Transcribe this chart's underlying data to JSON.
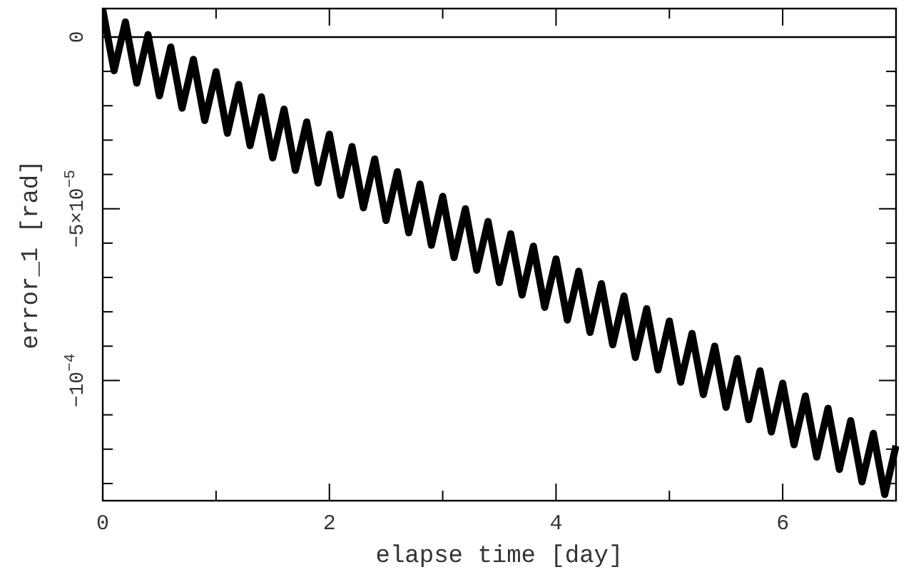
{
  "chart_data": {
    "type": "line",
    "xlabel": "elapse time [day]",
    "ylabel": "error_1 [rad]",
    "x": [
      0,
      0.1,
      0.2,
      0.3,
      0.4,
      0.5,
      0.6,
      0.7,
      0.8,
      0.9,
      1,
      1.1,
      1.2,
      1.3,
      1.4,
      1.5,
      1.6,
      1.7,
      1.8,
      1.9,
      2,
      2.1,
      2.2,
      2.3,
      2.4,
      2.5,
      2.6,
      2.7,
      2.8,
      2.9,
      3,
      3.1,
      3.2,
      3.3,
      3.4,
      3.5,
      3.6,
      3.7,
      3.8,
      3.9,
      4,
      4.1,
      4.2,
      4.3,
      4.4,
      4.5,
      4.6,
      4.7,
      4.8,
      4.9,
      5,
      5.1,
      5.2,
      5.3,
      5.4,
      5.5,
      5.6,
      5.7,
      5.8,
      5.9,
      6,
      6.1,
      6.2,
      6.3,
      6.4,
      6.5,
      6.6,
      6.7,
      6.8,
      6.9,
      7
    ],
    "series": [
      {
        "color": "#000000",
        "values": [
          8e-06,
          -9.8e-06,
          4.4e-06,
          -1.34e-05,
          7e-07,
          -1.71e-05,
          -2.9e-06,
          -2.07e-05,
          -6.5e-06,
          -2.43e-05,
          -1.01e-05,
          -2.8e-05,
          -1.38e-05,
          -3.16e-05,
          -1.74e-05,
          -3.52e-05,
          -2.1e-05,
          -3.88e-05,
          -2.47e-05,
          -4.25e-05,
          -2.83e-05,
          -4.61e-05,
          -3.19e-05,
          -4.97e-05,
          -3.55e-05,
          -5.34e-05,
          -3.92e-05,
          -5.7e-05,
          -4.28e-05,
          -6.06e-05,
          -4.64e-05,
          -6.42e-05,
          -5e-05,
          -6.79e-05,
          -5.37e-05,
          -7.15e-05,
          -5.73e-05,
          -7.51e-05,
          -6.09e-05,
          -7.87e-05,
          -6.46e-05,
          -8.24e-05,
          -6.82e-05,
          -8.6e-05,
          -7.18e-05,
          -8.96e-05,
          -7.54e-05,
          -9.33e-05,
          -7.91e-05,
          -9.69e-05,
          -8.27e-05,
          -0.0001005,
          -8.63e-05,
          -0.0001041,
          -9e-05,
          -0.0001078,
          -9.36e-05,
          -0.0001114,
          -9.72e-05,
          -0.000115,
          -0.0001008,
          -0.0001187,
          -0.0001045,
          -0.0001223,
          -0.0001081,
          -0.0001259,
          -0.0001117,
          -0.0001295,
          -0.0001154,
          -0.0001332,
          -0.000119
        ]
      }
    ],
    "xlim": [
      0,
      7
    ],
    "xticks": [
      0,
      {
        "value": 1,
        "label": null
      },
      2,
      {
        "value": 3,
        "label": null
      },
      4,
      {
        "value": 5,
        "label": null
      },
      6,
      {
        "value": 7,
        "label": null
      }
    ],
    "ylim": [
      -0.000135,
      8.3e-06
    ],
    "yticks": [
      {
        "value": 0,
        "label": "0"
      },
      {
        "value": -1e-05,
        "label": null
      },
      {
        "value": -2e-05,
        "label": null
      },
      {
        "value": -3e-05,
        "label": null
      },
      {
        "value": -4e-05,
        "label": null
      },
      {
        "value": -5e-05,
        "label": "−5×10$^{−5}$"
      },
      {
        "value": -6e-05,
        "label": null
      },
      {
        "value": -7e-05,
        "label": null
      },
      {
        "value": -8e-05,
        "label": null
      },
      {
        "value": -9e-05,
        "label": null
      },
      {
        "value": -0.0001,
        "label": "−10$^{−4}$"
      },
      {
        "value": -0.00011,
        "label": null
      },
      {
        "value": -0.00012,
        "label": null
      },
      {
        "value": -0.00013,
        "label": null
      }
    ],
    "ref_lines": [
      {
        "axis": "y",
        "value": 0,
        "color": "#000000"
      }
    ],
    "grid": false,
    "marker": "none",
    "line_style": "solid"
  }
}
